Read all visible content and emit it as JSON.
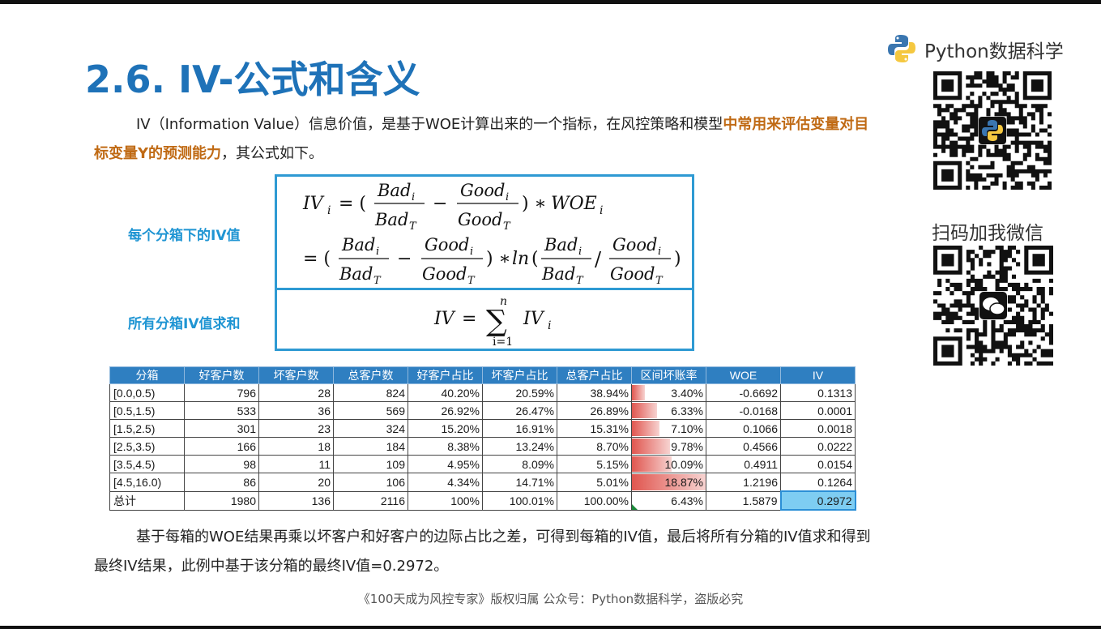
{
  "title": "2.6. IV-公式和含义",
  "intro": {
    "text_plain": "IV（Information Value）信息价值，是基于WOE计算出来的一个指标，在风控策略和模型",
    "text_emphasis": "中常用来评估变量对目标变量Y的预测能力",
    "text_tail": "，其公式如下。"
  },
  "labels": {
    "per_bin": "每个分箱下的IV值",
    "sum_bins": "所有分箱IV值求和"
  },
  "formula": {
    "iv_i": "IV",
    "sub_i": "i",
    "bad": "Bad",
    "good": "Good",
    "sub_T": "T",
    "woe": "WOE",
    "ln": "ln",
    "iv": "IV",
    "sum_upper": "n",
    "sum_lower": "i=1",
    "sum_symbol": "∑"
  },
  "table": {
    "headers": [
      "分箱",
      "好客户数",
      "坏客户数",
      "总客户数",
      "好客户占比",
      "坏客户占比",
      "总客户占比",
      "区间坏账率",
      "WOE",
      "IV"
    ],
    "rows": [
      {
        "bin": "[0.0,0.5)",
        "good": "796",
        "bad": "28",
        "total": "824",
        "good_pct": "40.20%",
        "bad_pct": "20.59%",
        "total_pct": "38.94%",
        "bad_rate": "3.40%",
        "bad_rate_value": 3.4,
        "woe": "-0.6692",
        "iv": "0.1313"
      },
      {
        "bin": "[0.5,1.5)",
        "good": "533",
        "bad": "36",
        "total": "569",
        "good_pct": "26.92%",
        "bad_pct": "26.47%",
        "total_pct": "26.89%",
        "bad_rate": "6.33%",
        "bad_rate_value": 6.33,
        "woe": "-0.0168",
        "iv": "0.0001"
      },
      {
        "bin": "[1.5,2.5)",
        "good": "301",
        "bad": "23",
        "total": "324",
        "good_pct": "15.20%",
        "bad_pct": "16.91%",
        "total_pct": "15.31%",
        "bad_rate": "7.10%",
        "bad_rate_value": 7.1,
        "woe": "0.1066",
        "iv": "0.0018"
      },
      {
        "bin": "[2.5,3.5)",
        "good": "166",
        "bad": "18",
        "total": "184",
        "good_pct": "8.38%",
        "bad_pct": "13.24%",
        "total_pct": "8.70%",
        "bad_rate": "9.78%",
        "bad_rate_value": 9.78,
        "woe": "0.4566",
        "iv": "0.0222"
      },
      {
        "bin": "[3.5,4.5)",
        "good": "98",
        "bad": "11",
        "total": "109",
        "good_pct": "4.95%",
        "bad_pct": "8.09%",
        "total_pct": "5.15%",
        "bad_rate": "10.09%",
        "bad_rate_value": 10.09,
        "woe": "0.4911",
        "iv": "0.0154"
      },
      {
        "bin": "[4.5,16.0)",
        "good": "86",
        "bad": "20",
        "total": "106",
        "good_pct": "4.34%",
        "bad_pct": "14.71%",
        "total_pct": "5.01%",
        "bad_rate": "18.87%",
        "bad_rate_value": 18.87,
        "woe": "1.2196",
        "iv": "0.1264"
      }
    ],
    "total": {
      "bin": "总计",
      "good": "1980",
      "bad": "136",
      "total": "2116",
      "good_pct": "100%",
      "bad_pct": "100.01%",
      "total_pct": "100.00%",
      "bad_rate": "6.43%",
      "woe": "1.5879",
      "iv": "0.2972"
    }
  },
  "conclusion": "基于每箱的WOE结果再乘以坏客户和好客户的边际占比之差，可得到每箱的IV值，最后将所有分箱的IV值求和得到最终IV结果，此例中基于该分箱的最终IV值=0.2972。",
  "footer": "《100天成为风控专家》版权归属 公众号：Python数据科学，盗版必究",
  "brand": {
    "name": "Python数据科学",
    "qr_caption": "扫码加我微信"
  },
  "colors": {
    "title": "#1e72b8",
    "emphasis": "#c06a14",
    "label": "#1f95d3",
    "header": "#2f7fc1",
    "highlight": "#7ecdf2"
  }
}
